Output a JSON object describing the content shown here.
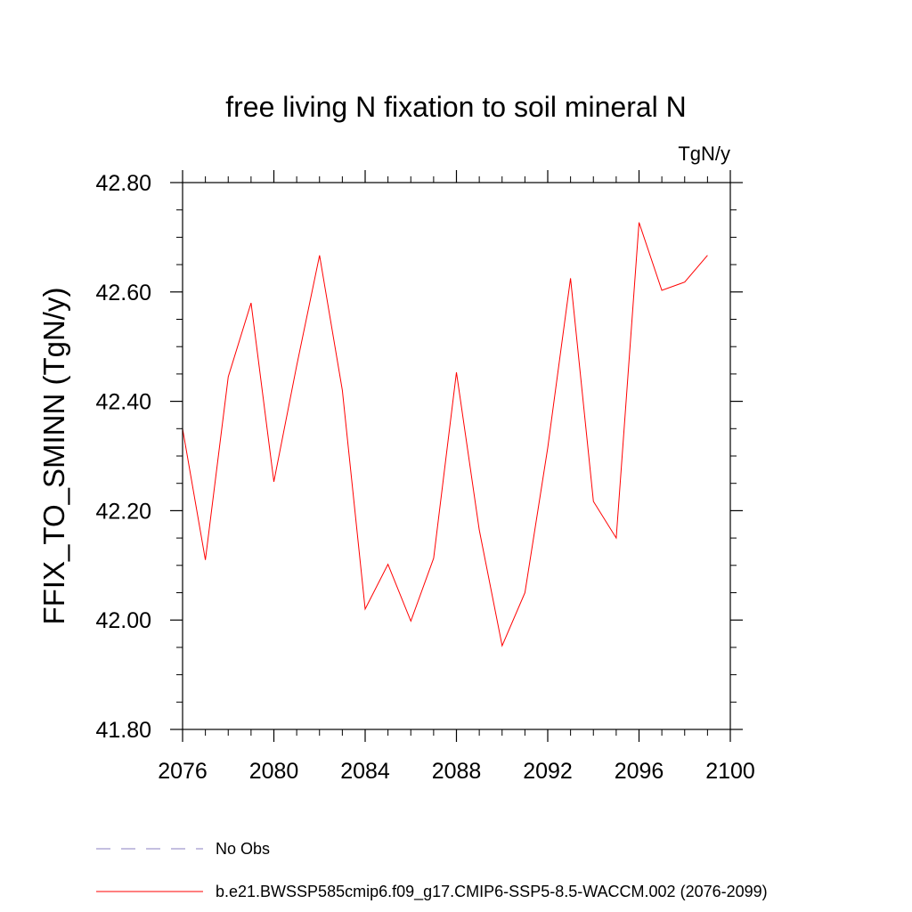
{
  "chart_data": {
    "type": "line",
    "title": "free living N fixation to soil mineral N",
    "units": "TgN/y",
    "ylabel": "FFIX_TO_SMINN  (TgN/y)",
    "xlabel": "",
    "xlim": [
      2076,
      2100
    ],
    "ylim": [
      41.8,
      42.8
    ],
    "xticks": [
      2076,
      2080,
      2084,
      2088,
      2092,
      2096,
      2100
    ],
    "xtick_labels": [
      "2076",
      "2080",
      "2084",
      "2088",
      "2092",
      "2096",
      "2100"
    ],
    "yticks": [
      41.8,
      42.0,
      42.2,
      42.4,
      42.6,
      42.8
    ],
    "ytick_labels": [
      "41.80",
      "42.00",
      "42.20",
      "42.40",
      "42.60",
      "42.80"
    ],
    "series": [
      {
        "name": "b.e21.BWSSP585cmip6.f09_g17.CMIP6-SSP5-8.5-WACCM.002 (2076-2099)",
        "color": "#ff0000",
        "style": "solid",
        "x": [
          2076,
          2077,
          2078,
          2079,
          2080,
          2081,
          2082,
          2083,
          2084,
          2085,
          2086,
          2087,
          2088,
          2089,
          2090,
          2091,
          2092,
          2093,
          2094,
          2095,
          2096,
          2097,
          2098,
          2099
        ],
        "y": [
          42.35,
          42.11,
          42.445,
          42.58,
          42.253,
          42.465,
          42.667,
          42.42,
          42.02,
          42.102,
          41.998,
          42.113,
          42.453,
          42.165,
          41.953,
          42.05,
          42.315,
          42.625,
          42.217,
          42.15,
          42.727,
          42.603,
          42.618,
          42.667
        ]
      }
    ],
    "legend": [
      {
        "label": "No Obs",
        "color": "#8a7fc0",
        "style": "dashed"
      },
      {
        "label": "b.e21.BWSSP585cmip6.f09_g17.CMIP6-SSP5-8.5-WACCM.002 (2076-2099)",
        "color": "#ff0000",
        "style": "solid"
      }
    ]
  }
}
